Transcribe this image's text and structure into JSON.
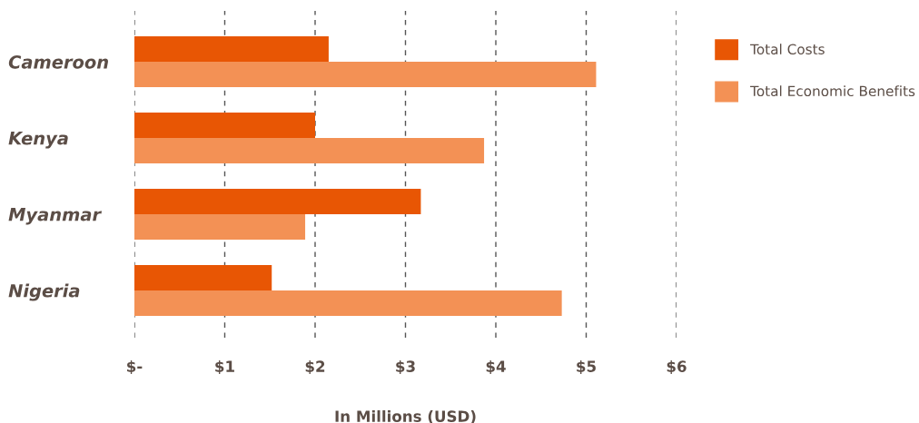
{
  "chart_data": {
    "type": "bar",
    "orientation": "horizontal",
    "xlabel": "In Millions (USD)",
    "categories": [
      "Cameroon",
      "Kenya",
      "Myanmar",
      "Nigeria"
    ],
    "series": [
      {
        "name": "Total Costs",
        "color": "#e85604",
        "values": [
          2.15,
          2.0,
          3.17,
          1.52
        ]
      },
      {
        "name": "Total Economic Benefits",
        "color": "#f39155",
        "values": [
          5.11,
          3.87,
          1.89,
          4.73
        ]
      }
    ],
    "xlim": [
      0,
      6
    ],
    "xticks": [
      {
        "value": 0,
        "label": "$-"
      },
      {
        "value": 1,
        "label": "$1"
      },
      {
        "value": 2,
        "label": "$2"
      },
      {
        "value": 3,
        "label": "$3"
      },
      {
        "value": 4,
        "label": "$4"
      },
      {
        "value": 5,
        "label": "$5"
      },
      {
        "value": 6,
        "label": "$6"
      }
    ],
    "grid": "x",
    "legend": "right"
  }
}
